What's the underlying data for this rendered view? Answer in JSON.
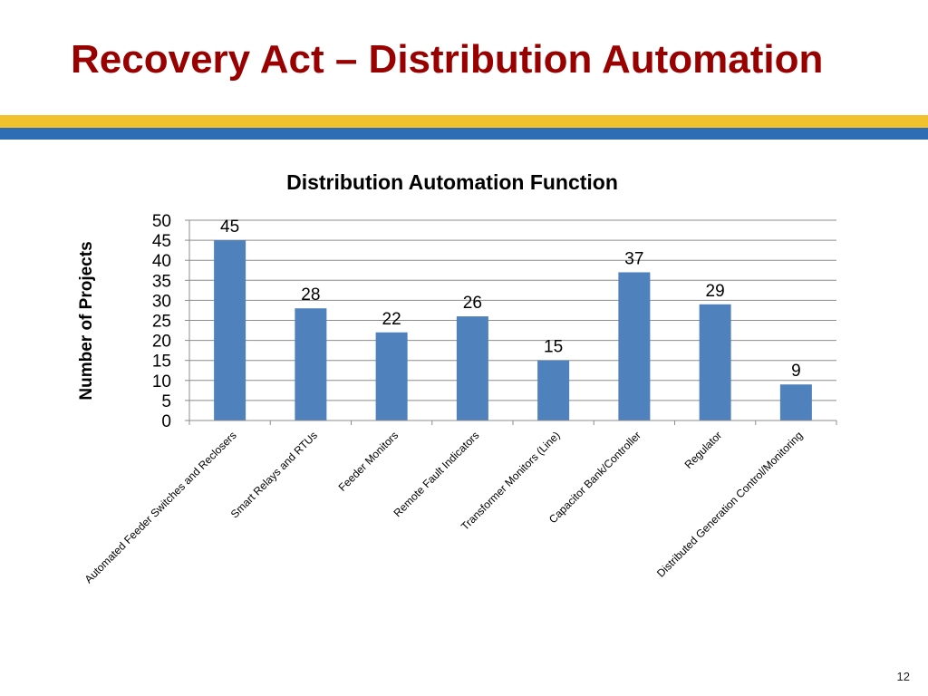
{
  "slide": {
    "title": "Recovery Act – Distribution Automation",
    "page_number": "12",
    "title_color": "#990000",
    "band_colors": {
      "yellow": "#F2C12E",
      "blue": "#2E6DB4"
    }
  },
  "chart_data": {
    "type": "bar",
    "title": "Distribution Automation Function",
    "xlabel": "",
    "ylabel": "Number of Projects",
    "categories": [
      "Automated Feeder Switches and Reclosers",
      "Smart Relays and RTUs",
      "Feeder Monitors",
      "Remote Fault Indicators",
      "Transformer Monitors (Line)",
      "Capacitor Bank/Controller",
      "Regulator",
      "Distributed Generation Control/Monitoring"
    ],
    "values": [
      45,
      28,
      22,
      26,
      15,
      37,
      29,
      9
    ],
    "ylim": [
      0,
      50
    ],
    "yticks": [
      0,
      5,
      10,
      15,
      20,
      25,
      30,
      35,
      40,
      45,
      50
    ],
    "grid": true,
    "legend": false,
    "data_labels": true,
    "bar_color": "#4F81BD"
  }
}
